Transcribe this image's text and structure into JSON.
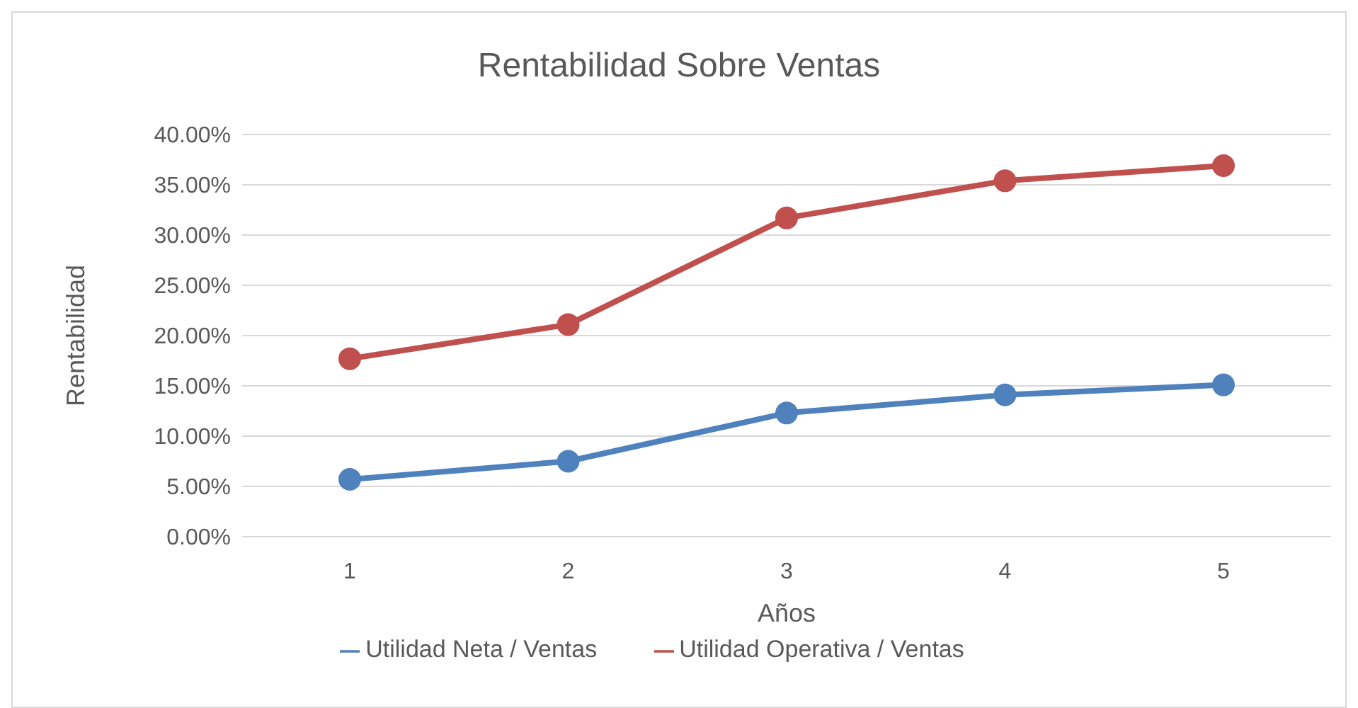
{
  "chart_data": {
    "type": "line",
    "title": "Rentabilidad Sobre Ventas",
    "xlabel": "Años",
    "ylabel": "Rentabilidad",
    "categories": [
      "1",
      "2",
      "3",
      "4",
      "5"
    ],
    "series": [
      {
        "name": "Utilidad Neta / Ventas",
        "color": "#4f81bd",
        "values": [
          5.7,
          7.5,
          12.3,
          14.1,
          15.1
        ]
      },
      {
        "name": "Utilidad Operativa / Ventas",
        "color": "#c0504d",
        "values": [
          17.7,
          21.1,
          31.7,
          35.4,
          36.9
        ]
      }
    ],
    "ylim": [
      0,
      40
    ],
    "yticks": [
      {
        "value": 0,
        "label": "0.00%"
      },
      {
        "value": 5,
        "label": "5.00%"
      },
      {
        "value": 10,
        "label": "10.00%"
      },
      {
        "value": 15,
        "label": "15.00%"
      },
      {
        "value": 20,
        "label": "20.00%"
      },
      {
        "value": 25,
        "label": "25.00%"
      },
      {
        "value": 30,
        "label": "30.00%"
      },
      {
        "value": 35,
        "label": "35.00%"
      },
      {
        "value": 40,
        "label": "40.00%"
      }
    ],
    "grid": "y",
    "legend": "bottom",
    "marker": "circle",
    "line_style": "solid"
  }
}
